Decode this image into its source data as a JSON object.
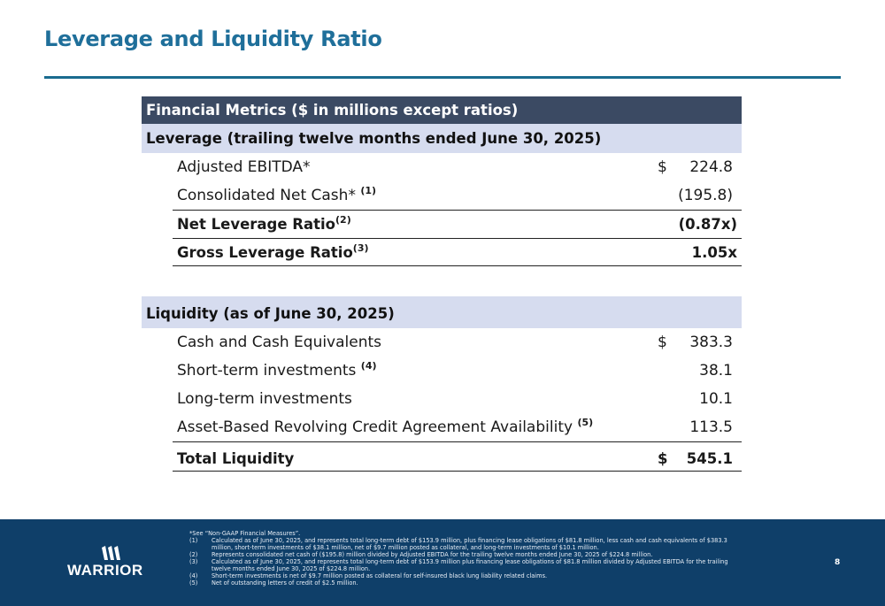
{
  "title": "Leverage and Liquidity Ratio",
  "table": {
    "header": "Financial Metrics ($ in millions except ratios)",
    "leverage_section": "Leverage (trailing twelve months ended June 30, 2025)",
    "leverage_rows": [
      {
        "label": "Adjusted EBITDA*",
        "sup": "",
        "dollar": "$",
        "value": "224.8"
      },
      {
        "label": "Consolidated Net Cash* ",
        "sup": "(1)",
        "dollar": "",
        "value": "(195.8)"
      },
      {
        "label": "Net Leverage Ratio",
        "sup": "(2)",
        "dollar": "",
        "value": "(0.87x)"
      },
      {
        "label": "Gross Leverage Ratio",
        "sup": "(3)",
        "dollar": "",
        "value": "1.05x"
      }
    ],
    "liquidity_section": "Liquidity (as of June 30, 2025)",
    "liquidity_rows": [
      {
        "label": "Cash and Cash Equivalents",
        "sup": "",
        "dollar": "$",
        "value": "383.3"
      },
      {
        "label": "Short-term investments ",
        "sup": "(4)",
        "dollar": "",
        "value": "38.1"
      },
      {
        "label": "Long-term investments",
        "sup": "",
        "dollar": "",
        "value": "10.1"
      },
      {
        "label": "Asset-Based Revolving Credit Agreement Availability ",
        "sup": "(5)",
        "dollar": "",
        "value": "113.5"
      },
      {
        "label": "Total Liquidity",
        "sup": "",
        "dollar": "$",
        "value": "545.1"
      }
    ]
  },
  "footer": {
    "logo_text": "WARRIOR",
    "page_number": "8",
    "see_note": "*See “Non-GAAP Financial Measures”.",
    "notes": [
      {
        "num": "(1)",
        "text": "Calculated as of June 30, 2025, and represents total long-term debt of $153.9 million, plus financing lease obligations of $81.8 million, less cash and cash equivalents of $383.3 million, short-term investments of $38.1 million, net of $9.7 million posted as collateral, and long-term investments of $10.1 million."
      },
      {
        "num": "(2)",
        "text": "Represents consolidated net cash of ($195.8) million divided by Adjusted EBITDA for the trailing twelve months ended June 30, 2025 of $224.8 million."
      },
      {
        "num": "(3)",
        "text": "Calculated as of June 30, 2025, and represents total long-term debt of $153.9 million plus financing lease obligations of $81.8 million divided by Adjusted EBITDA for the trailing twelve months ended June 30, 2025 of $224.8 million."
      },
      {
        "num": "(4)",
        "text": "Short-term investments is net of $9.7 million posted as collateral for self-insured black lung liability related claims."
      },
      {
        "num": "(5)",
        "text": "Net of outstanding letters of credit of $2.5 million."
      }
    ]
  }
}
